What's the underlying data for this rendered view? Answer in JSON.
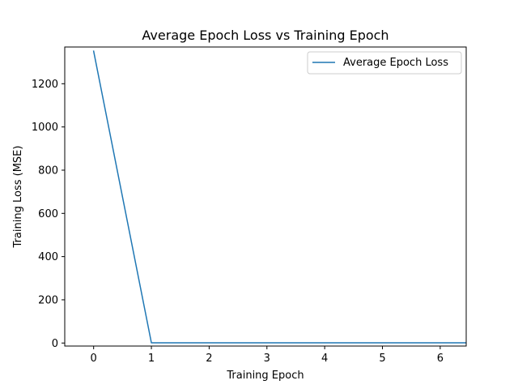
{
  "chart_data": {
    "type": "line",
    "title": "Average Epoch Loss vs Training Epoch",
    "xlabel": "Training Epoch",
    "ylabel": "Training Loss (MSE)",
    "xlim": [
      -0.5,
      6.45
    ],
    "ylim": [
      -14,
      1370
    ],
    "xticks": [
      0,
      1,
      2,
      3,
      4,
      5,
      6
    ],
    "yticks": [
      0,
      200,
      400,
      600,
      800,
      1000,
      1200
    ],
    "grid": false,
    "legend_position": "top-right",
    "series": [
      {
        "name": "Average Epoch Loss",
        "color": "#1f77b4",
        "x": [
          0,
          1,
          2,
          3,
          4,
          5,
          6,
          7
        ],
        "y": [
          1351,
          1,
          1,
          1,
          1,
          1,
          1,
          1
        ]
      }
    ]
  }
}
